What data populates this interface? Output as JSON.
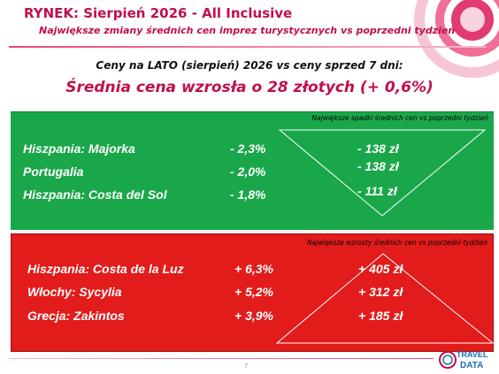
{
  "header": {
    "title": "RYNEK: Sierpień 2026 - All Inclusive",
    "subtitle": "Największe zmiany średnich cen imprez turystycznych vs poprzedni tydzień"
  },
  "summary": {
    "line1": "Ceny na LATO (sierpień) 2026 vs ceny sprzed 7 dni:",
    "line2": "Średnia cena wzrosła o 28 złotych (+ 0,6%)"
  },
  "decreases": {
    "note": "Największe spadki średnich cen vs poprzedni tydzień",
    "rows": [
      {
        "name": "Hiszpania: Majorka",
        "pct": "- 2,3%",
        "amount": "- 138 zł"
      },
      {
        "name": "Portugalia",
        "pct": "- 2,0%",
        "amount": "- 138 zł"
      },
      {
        "name": "Hiszpania: Costa del Sol",
        "pct": "- 1,8%",
        "amount": "- 111 zł"
      }
    ]
  },
  "increases": {
    "note": "Największe wzrosty średnich cen vs poprzedni tydzień",
    "rows": [
      {
        "name": "Hiszpania: Costa de la Luz",
        "pct": "+ 6,3%",
        "amount": "+ 405 zł"
      },
      {
        "name": "Włochy: Sycylia",
        "pct": "+ 5,2%",
        "amount": "+ 312 zł"
      },
      {
        "name": "Grecja: Zakintos",
        "pct": "+ 3,9%",
        "amount": "+ 185 zł"
      }
    ]
  },
  "footer": {
    "page_number": "7",
    "logo_line1": "TRAVEL",
    "logo_line2": "DATA"
  },
  "colors": {
    "brand": "#c0104a",
    "green_panel": "#1aa74a",
    "red_panel": "#e21b1b"
  }
}
